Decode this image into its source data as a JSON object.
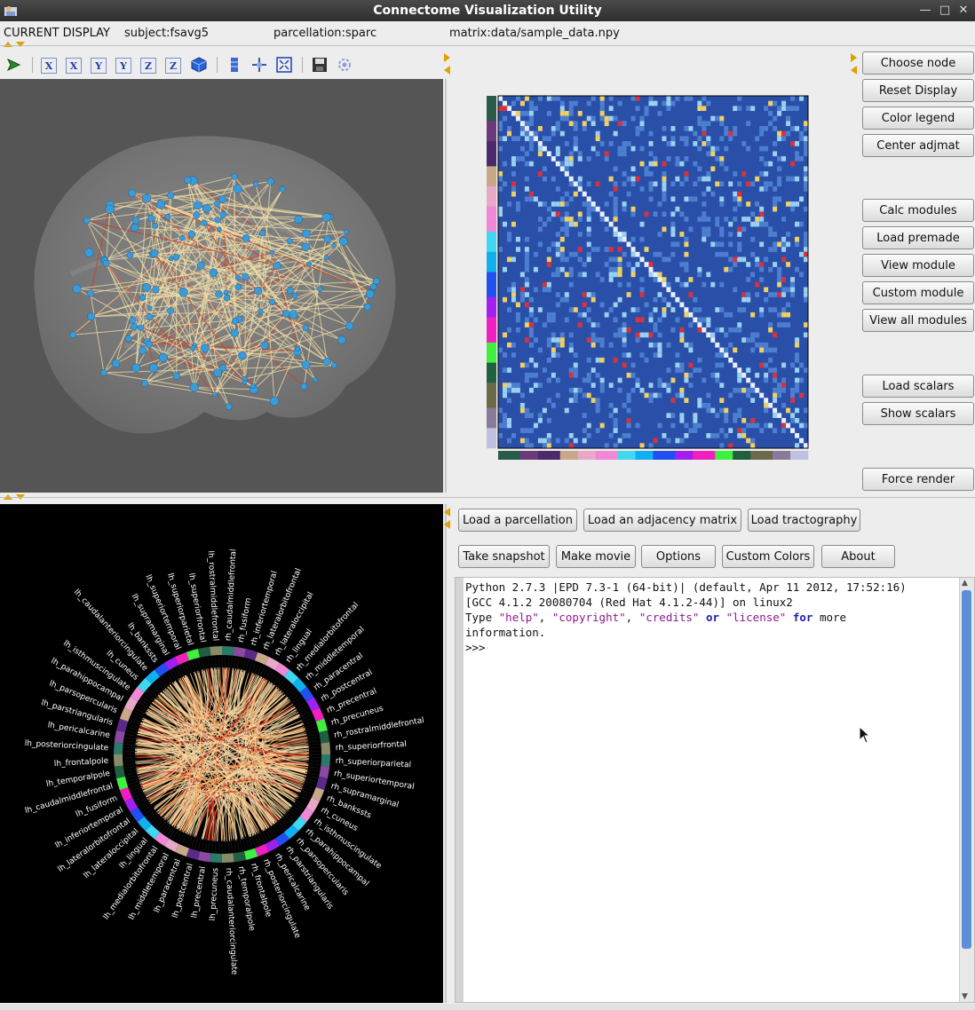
{
  "window": {
    "title": "Connectome Visualization Utility"
  },
  "info": {
    "label": "CURRENT DISPLAY",
    "subject": "subject:fsavg5",
    "parcellation": "parcellation:sparc",
    "matrix": "matrix:data/sample_data.npy"
  },
  "toolbar": {
    "icons": [
      "pointer-icon",
      "view-x-icon",
      "view-x-neg-icon",
      "view-y-icon",
      "view-y-neg-icon",
      "view-z-icon",
      "view-z-neg-icon",
      "isometric-cube-icon",
      "parallel-projection-icon",
      "move-icon",
      "fullscreen-icon",
      "save-icon",
      "settings-icon"
    ],
    "labels": {
      "x": "X",
      "y": "Y",
      "z": "Z"
    }
  },
  "side_buttons": {
    "choose_node": "Choose node",
    "reset_display": "Reset Display",
    "color_legend": "Color legend",
    "center_adjmat": "Center adjmat",
    "calc_modules": "Calc modules",
    "load_premade": "Load premade",
    "view_module": "View module",
    "custom_module": "Custom module",
    "view_all_modules": "View all modules",
    "load_scalars": "Load scalars",
    "show_scalars": "Show scalars",
    "force_render": "Force render"
  },
  "bottom_buttons": {
    "load_parcellation": "Load a parcellation",
    "load_adjacency": "Load an adjacency matrix",
    "load_tractography": "Load tractography",
    "take_snapshot": "Take snapshot",
    "make_movie": "Make movie",
    "options": "Options",
    "custom_colors": "Custom Colors",
    "about": "About"
  },
  "shell": {
    "line1": "Python 2.7.3 |EPD 7.3-1 (64-bit)| (default, Apr 11 2012, 17:52:16)",
    "line2": "[GCC 4.1.2 20080704 (Red Hat 4.1.2-44)] on linux2",
    "line3_prefix": "Type ",
    "help": "\"help\"",
    "comma1": ", ",
    "copyright": "\"copyright\"",
    "comma2": ", ",
    "credits": "\"credits\"",
    "or": "or",
    "license": "\"license\"",
    "for": "for",
    "more": " more",
    "line4": "information.",
    "prompt": ">>>"
  },
  "circle": {
    "lh_labels": [
      "lh_rostralmiddlefrontal",
      "lh_superiorfrontal",
      "lh_superiorparietal",
      "lh_superiortemporal",
      "lh_supramarginal",
      "lh_bankssts",
      "lh_caudalanteriorcingulate",
      "lh_cuneus",
      "lh_isthmuscingulate",
      "lh_parahippocampal",
      "lh_parsopercularis",
      "lh_parstriangularis",
      "lh_pericalcarine",
      "lh_posteriorcingulate",
      "lh_frontalpole",
      "lh_temporalpole",
      "lh_caudalmiddlefrontal",
      "lh_fusiform",
      "lh_inferiortemporal",
      "lh_lateralorbitofrontal",
      "lh_lateraloccipital",
      "lh_lingual",
      "lh_medialorbitofrontal",
      "lh_middletemporal",
      "lh_paracentral",
      "lh_postcentral",
      "lh_precentral",
      "lh_precuneus"
    ],
    "rh_labels": [
      "rh_caudalmiddlefrontal",
      "rh_fusiform",
      "rh_inferiortemporal",
      "rh_lateralorbitofrontal",
      "rh_lateraloccipital",
      "rh_lingual",
      "rh_medialorbitofrontal",
      "rh_middletemporal",
      "rh_paracentral",
      "rh_postcentral",
      "rh_precentral",
      "rh_precuneus",
      "rh_rostralmiddlefrontal",
      "rh_superiorfrontal",
      "rh_superiorparietal",
      "rh_superiortemporal",
      "rh_supramarginal",
      "rh_bankssts",
      "rh_cuneus",
      "rh_isthmuscingulate",
      "rh_parahippocampal",
      "rh_parsopercularis",
      "rh_parstriangularis",
      "rh_pericalcarine",
      "rh_posteriorcingulate",
      "rh_frontalpole",
      "rh_temporalpole",
      "rh_caudalanteriorcingulate"
    ]
  }
}
